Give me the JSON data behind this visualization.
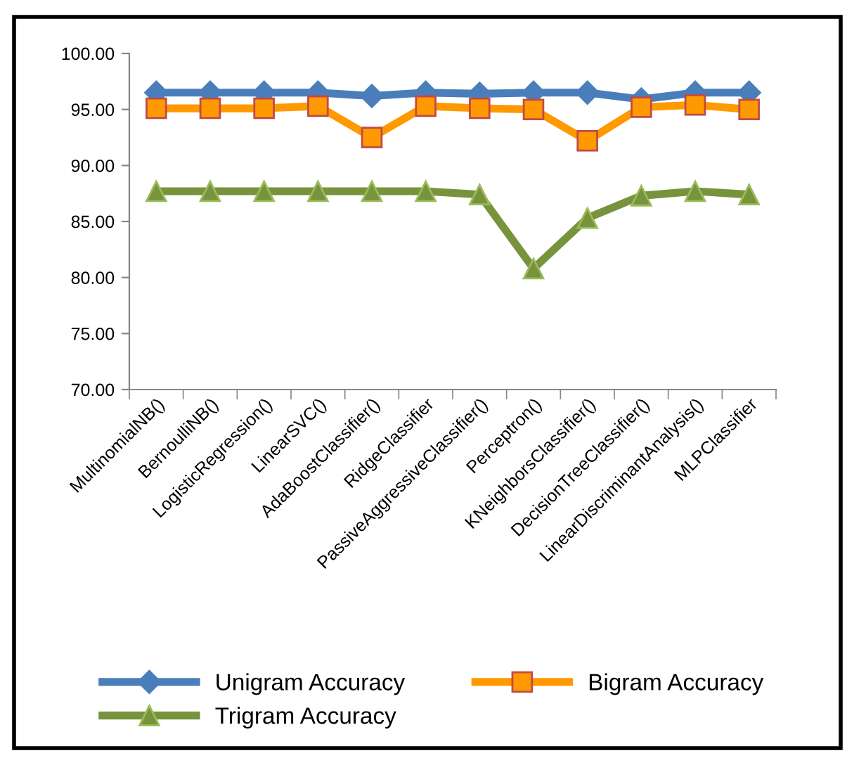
{
  "chart_data": {
    "type": "line",
    "categories": [
      "MultinomialNB()",
      "BernoulliNB()",
      "LogisticRegression()",
      "LinearSVC()",
      "AdaBoostClassifier()",
      "RidgeClassifier",
      "PassiveAggressiveClassifier()",
      "Perceptron()",
      "KNeighborsClassifier()",
      "DecisionTreeClassifier()",
      "LinearDiscriminantAnalysis()",
      "MLPClassifier"
    ],
    "series": [
      {
        "name": "Unigram Accuracy",
        "color": "#4a7ebb",
        "marker": "diamond",
        "values": [
          96.5,
          96.5,
          96.5,
          96.5,
          96.2,
          96.5,
          96.4,
          96.5,
          96.5,
          95.9,
          96.5,
          96.5
        ]
      },
      {
        "name": "Bigram Accuracy",
        "color": "#ff9900",
        "marker": "square",
        "values": [
          95.1,
          95.1,
          95.1,
          95.3,
          92.5,
          95.3,
          95.1,
          95.0,
          92.2,
          95.2,
          95.4,
          95.0
        ]
      },
      {
        "name": "Trigram Accuracy",
        "color": "#77933c",
        "marker": "triangle",
        "values": [
          87.7,
          87.7,
          87.7,
          87.7,
          87.7,
          87.7,
          87.4,
          80.8,
          85.3,
          87.3,
          87.7,
          87.4
        ]
      }
    ],
    "ylim": [
      70,
      100
    ],
    "yticks": [
      {
        "value": 70,
        "label": "70.00"
      },
      {
        "value": 75,
        "label": "75.00"
      },
      {
        "value": 80,
        "label": "80.00"
      },
      {
        "value": 85,
        "label": "85.00"
      },
      {
        "value": 90,
        "label": "90.00"
      },
      {
        "value": 95,
        "label": "95.00"
      },
      {
        "value": 100,
        "label": "100.00"
      }
    ],
    "grid": false,
    "legend": "bottom",
    "line_style": "solid"
  }
}
